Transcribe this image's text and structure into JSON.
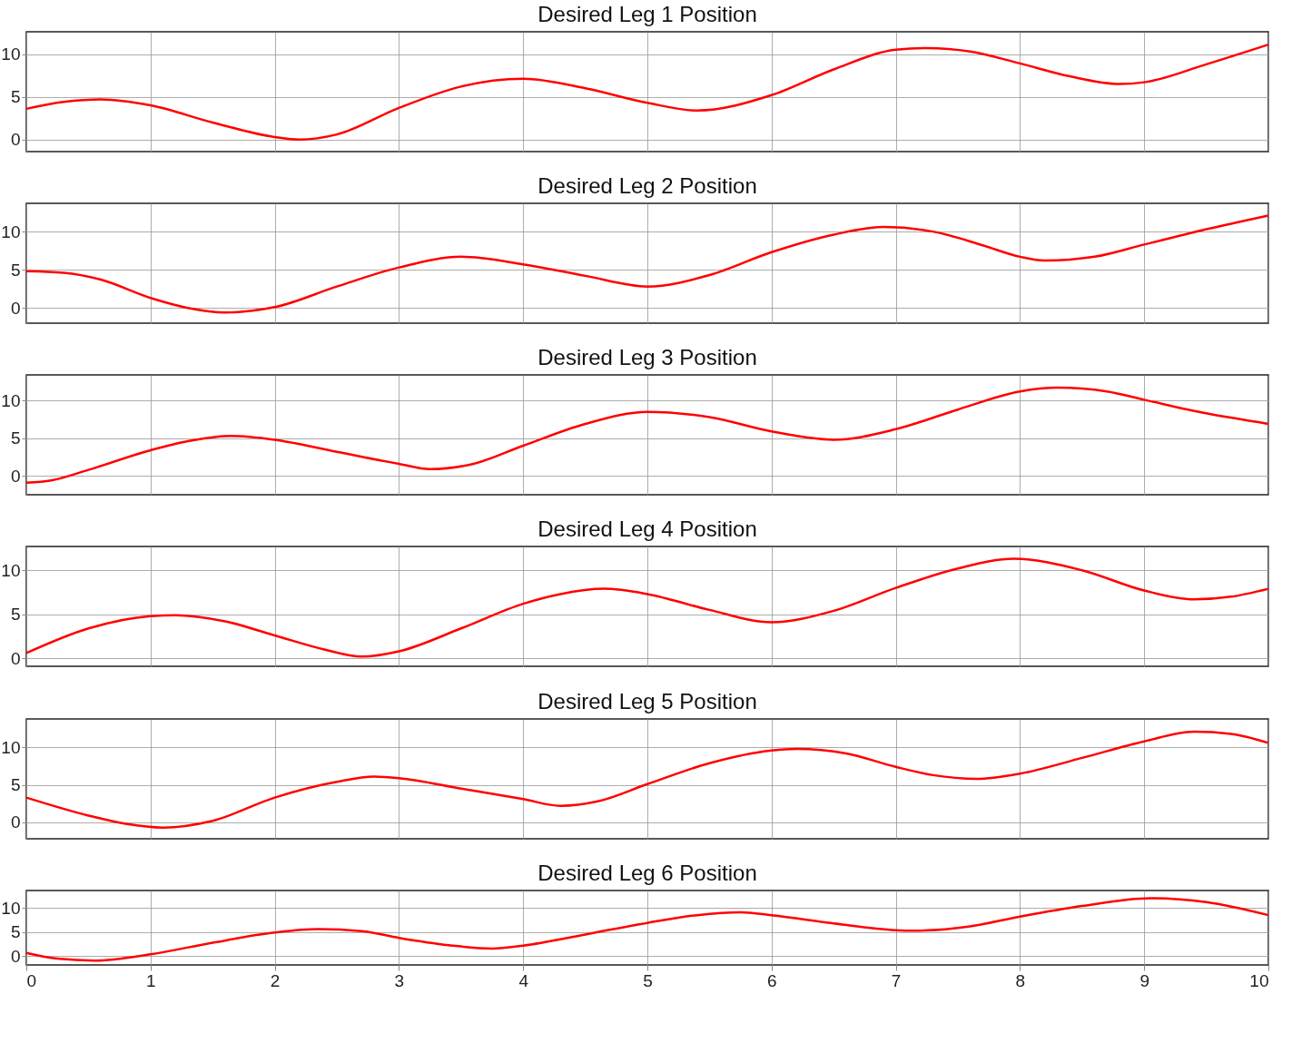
{
  "chart_data": [
    {
      "type": "line",
      "title": "Desired Leg 1 Position",
      "x": [
        0,
        0.3,
        0.6,
        1,
        1.5,
        2,
        2.2,
        2.5,
        3,
        3.5,
        4,
        4.5,
        5,
        5.4,
        6,
        6.5,
        7,
        7.25,
        7.6,
        8,
        8.4,
        8.8,
        9,
        9.5,
        10
      ],
      "series": [
        {
          "color": "#ff0000",
          "values": [
            3.6,
            4.4,
            4.7,
            4.0,
            2.0,
            0.3,
            0,
            0.6,
            3.7,
            6.2,
            7.1,
            6.0,
            4.3,
            3.4,
            5.2,
            8.2,
            10.5,
            10.7,
            10.3,
            8.9,
            7.4,
            6.5,
            6.7,
            8.8,
            11.1
          ]
        }
      ],
      "xlim": [
        0,
        10
      ],
      "ylim": [
        -1.4,
        12.6
      ],
      "xticks": [
        0,
        1,
        2,
        3,
        4,
        5,
        6,
        7,
        8,
        9,
        10
      ],
      "yticks": [
        0,
        5,
        10
      ],
      "grid": true,
      "tick_labels": "y",
      "line_style": "solid",
      "marker": "none"
    },
    {
      "type": "line",
      "title": "Desired Leg 2 Position",
      "x": [
        0,
        0.3,
        0.6,
        1,
        1.3,
        1.6,
        2,
        2.5,
        3,
        3.5,
        4,
        4.5,
        5,
        5.5,
        6,
        6.5,
        6.9,
        7.3,
        7.7,
        8,
        8.2,
        8.6,
        9,
        9.5,
        10
      ],
      "series": [
        {
          "color": "#ff0000",
          "values": [
            4.8,
            4.6,
            3.7,
            1.3,
            0,
            -0.6,
            0.1,
            2.8,
            5.3,
            6.7,
            5.7,
            4.2,
            2.8,
            4.3,
            7.3,
            9.6,
            10.6,
            10.0,
            8.2,
            6.7,
            6.2,
            6.7,
            8.3,
            10.3,
            12.1
          ]
        }
      ],
      "xlim": [
        0,
        10
      ],
      "ylim": [
        -2,
        13.7
      ],
      "xticks": [
        0,
        1,
        2,
        3,
        4,
        5,
        6,
        7,
        8,
        9,
        10
      ],
      "yticks": [
        0,
        5,
        10
      ],
      "grid": true,
      "tick_labels": "y",
      "line_style": "solid",
      "marker": "none"
    },
    {
      "type": "line",
      "title": "Desired Leg 3 Position",
      "x": [
        0,
        0.2,
        0.5,
        1,
        1.3,
        1.65,
        2,
        2.5,
        3,
        3.25,
        3.6,
        4,
        4.5,
        5,
        5.5,
        6,
        6.5,
        7,
        7.5,
        8,
        8.3,
        8.7,
        9,
        9.5,
        10
      ],
      "series": [
        {
          "color": "#ff0000",
          "values": [
            -0.9,
            -0.6,
            0.8,
            3.4,
            4.6,
            5.3,
            4.8,
            3.2,
            1.6,
            0.9,
            1.6,
            4.0,
            6.9,
            8.5,
            7.8,
            5.9,
            4.8,
            6.2,
            8.8,
            11.2,
            11.7,
            11.2,
            10.1,
            8.3,
            6.9
          ]
        }
      ],
      "xlim": [
        0,
        10
      ],
      "ylim": [
        -2.5,
        13.4
      ],
      "xticks": [
        0,
        1,
        2,
        3,
        4,
        5,
        6,
        7,
        8,
        9,
        10
      ],
      "yticks": [
        0,
        5,
        10
      ],
      "grid": true,
      "tick_labels": "y",
      "line_style": "solid",
      "marker": "none"
    },
    {
      "type": "line",
      "title": "Desired Leg 4 Position",
      "x": [
        0,
        0.5,
        1,
        1.2,
        1.6,
        2,
        2.4,
        2.7,
        3,
        3.5,
        4,
        4.3,
        4.65,
        5,
        5.5,
        6,
        6.5,
        7,
        7.5,
        7.95,
        8.5,
        9,
        9.4,
        9.7,
        10
      ],
      "series": [
        {
          "color": "#ff0000",
          "values": [
            0.6,
            3.4,
            4.8,
            4.9,
            4.2,
            2.6,
            1.0,
            0.2,
            0.8,
            3.4,
            6.2,
            7.3,
            7.9,
            7.3,
            5.5,
            4.1,
            5.4,
            8.0,
            10.2,
            11.3,
            10.0,
            7.7,
            6.7,
            7.0,
            7.9
          ]
        }
      ],
      "xlim": [
        0,
        10
      ],
      "ylim": [
        -0.9,
        12.7
      ],
      "xticks": [
        0,
        1,
        2,
        3,
        4,
        5,
        6,
        7,
        8,
        9,
        10
      ],
      "yticks": [
        0,
        5,
        10
      ],
      "grid": true,
      "tick_labels": "y",
      "line_style": "solid",
      "marker": "none"
    },
    {
      "type": "line",
      "title": "Desired Leg 5 Position",
      "x": [
        0,
        0.5,
        0.8,
        1.1,
        1.5,
        2,
        2.5,
        2.8,
        3,
        3.5,
        4,
        4.3,
        4.6,
        5,
        5.5,
        6,
        6.2,
        6.6,
        7,
        7.3,
        7.65,
        8,
        8.5,
        9,
        9.4,
        9.7,
        10
      ],
      "series": [
        {
          "color": "#ff0000",
          "values": [
            3.3,
            0.9,
            -0.2,
            -0.7,
            0.2,
            3.3,
            5.4,
            6.1,
            5.9,
            4.5,
            3.1,
            2.2,
            2.8,
            5.1,
            7.9,
            9.6,
            9.8,
            9.2,
            7.4,
            6.3,
            5.8,
            6.5,
            8.6,
            10.8,
            12.1,
            11.8,
            10.6
          ]
        }
      ],
      "xlim": [
        0,
        10
      ],
      "ylim": [
        -2.2,
        13.8
      ],
      "xticks": [
        0,
        1,
        2,
        3,
        4,
        5,
        6,
        7,
        8,
        9,
        10
      ],
      "yticks": [
        0,
        5,
        10
      ],
      "grid": true,
      "tick_labels": "y",
      "line_style": "solid",
      "marker": "none"
    },
    {
      "type": "line",
      "title": "Desired Leg 6 Position",
      "x": [
        0,
        0.25,
        0.55,
        1,
        1.5,
        2,
        2.35,
        2.7,
        3,
        3.4,
        3.75,
        4,
        4.5,
        5,
        5.4,
        5.75,
        6,
        6.5,
        7,
        7.15,
        7.6,
        8,
        8.5,
        9.05,
        9.5,
        10
      ],
      "series": [
        {
          "color": "#ff0000",
          "values": [
            0.7,
            -0.5,
            -0.9,
            0.4,
            2.8,
            4.9,
            5.6,
            5.2,
            3.8,
            2.3,
            1.6,
            2.2,
            4.5,
            6.9,
            8.5,
            9.1,
            8.5,
            6.8,
            5.4,
            5.3,
            6.2,
            8.2,
            10.4,
            12.0,
            11.2,
            8.5
          ]
        }
      ],
      "xlim": [
        0,
        10
      ],
      "ylim": [
        -1.8,
        13.6
      ],
      "xticks": [
        0,
        1,
        2,
        3,
        4,
        5,
        6,
        7,
        8,
        9,
        10
      ],
      "yticks": [
        0,
        5,
        10
      ],
      "grid": true,
      "line_style": "solid",
      "marker": "none"
    }
  ]
}
